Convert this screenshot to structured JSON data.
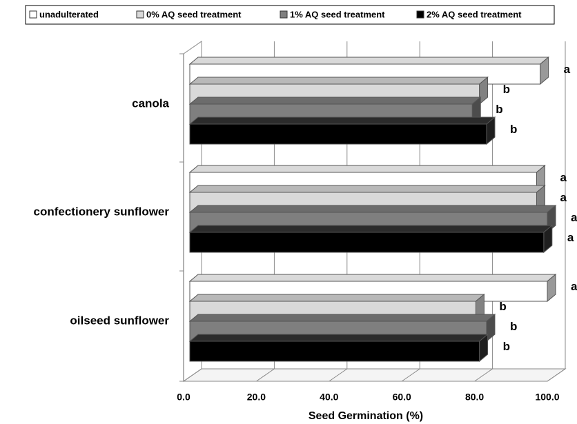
{
  "chart_data": {
    "type": "bar3d_horizontal",
    "xlabel": "Seed Germination (%)",
    "categories": [
      "canola",
      "confectionery sunflower",
      "oilseed sunflower"
    ],
    "series": [
      {
        "name": "unadulterated",
        "color": "#ffffff",
        "values": [
          98,
          97,
          100
        ],
        "annotations": [
          "a",
          "a",
          "a"
        ]
      },
      {
        "name": "0% AQ seed treatment",
        "color": "#d9d9d9",
        "values": [
          81,
          97,
          80
        ],
        "annotations": [
          "b",
          "a",
          "b"
        ]
      },
      {
        "name": "1% AQ seed treatment",
        "color": "#7f7f7f",
        "values": [
          79,
          100,
          83
        ],
        "annotations": [
          "b",
          "a",
          "b"
        ]
      },
      {
        "name": "2% AQ seed treatment",
        "color": "#000000",
        "values": [
          83,
          99,
          81
        ],
        "annotations": [
          "b",
          "a",
          "b"
        ]
      }
    ],
    "xlim": [
      0,
      100
    ],
    "xticks": [
      {
        "value": 0,
        "label": "0.0"
      },
      {
        "value": 20,
        "label": "20.0"
      },
      {
        "value": 40,
        "label": "40.0"
      },
      {
        "value": 60,
        "label": "60.0"
      },
      {
        "value": 80,
        "label": "80.0"
      },
      {
        "value": 100,
        "label": "100.0"
      }
    ],
    "grid": true
  }
}
